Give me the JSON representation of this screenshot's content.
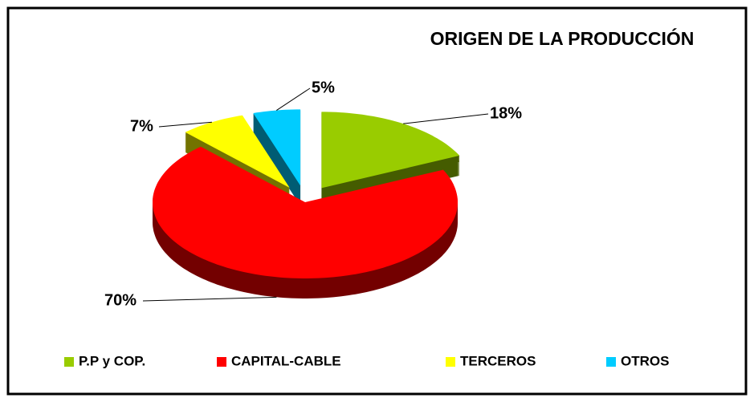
{
  "chart_data": {
    "type": "pie",
    "title": "ORIGEN DE LA PRODUCCIÓN",
    "categories": [
      "P.P y COP.",
      "CAPITAL-CABLE",
      "TERCEROS",
      "OTROS"
    ],
    "values": [
      18,
      70,
      7,
      5
    ],
    "value_labels": [
      "18%",
      "70%",
      "7%",
      "5%"
    ],
    "colors": [
      "#99cc00",
      "#ff0000",
      "#ffff00",
      "#00ccff"
    ],
    "legend": "bottom"
  }
}
